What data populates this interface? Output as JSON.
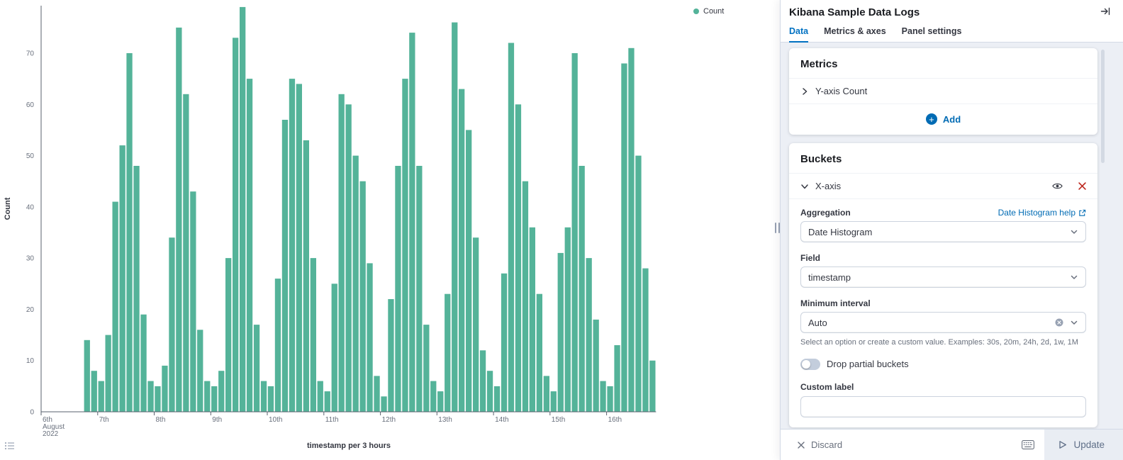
{
  "colors": {
    "bar_green": "#54B399",
    "accent_blue": "#0071c2",
    "link_blue": "#006BB4",
    "danger_red": "#BD271E"
  },
  "chart_data": {
    "type": "bar",
    "title": "",
    "xlabel": "timestamp per 3 hours",
    "ylabel": "Count",
    "ylim": [
      0,
      80
    ],
    "y_ticks": [
      0,
      10,
      20,
      30,
      40,
      50,
      60,
      70
    ],
    "x_tick_labels": [
      "6th August 2022",
      "7th",
      "8th",
      "9th",
      "10th",
      "11th",
      "12th",
      "13th",
      "14th",
      "15th",
      "16th"
    ],
    "bucket_interval": "3h",
    "x_start": "2022-08-06 18:00",
    "buckets_per_day": 8,
    "series_start_offset_buckets": 6,
    "grid": false,
    "legend_position": "top-right",
    "legend": [
      {
        "label": "Count",
        "color": "#54B399"
      }
    ],
    "values": [
      14,
      8,
      6,
      15,
      41,
      52,
      70,
      48,
      19,
      6,
      5,
      9,
      34,
      75,
      62,
      43,
      16,
      6,
      5,
      8,
      30,
      73,
      79,
      65,
      17,
      6,
      5,
      26,
      57,
      65,
      64,
      53,
      30,
      6,
      4,
      25,
      62,
      60,
      50,
      45,
      29,
      7,
      3,
      22,
      48,
      65,
      74,
      48,
      17,
      6,
      4,
      23,
      76,
      63,
      55,
      34,
      12,
      8,
      5,
      27,
      72,
      60,
      45,
      36,
      23,
      7,
      4,
      31,
      36,
      70,
      48,
      30,
      18,
      6,
      5,
      13,
      68,
      71,
      50,
      28,
      10
    ]
  },
  "panel": {
    "title": "Kibana Sample Data Logs",
    "tabs": [
      {
        "label": "Data",
        "active": true
      },
      {
        "label": "Metrics & axes",
        "active": false
      },
      {
        "label": "Panel settings",
        "active": false
      }
    ],
    "metrics": {
      "heading": "Metrics",
      "row_label": "Y-axis Count",
      "add_label": "Add"
    },
    "buckets": {
      "heading": "Buckets",
      "row_label": "X-axis",
      "aggregation_label": "Aggregation",
      "aggregation_help": "Date Histogram help",
      "aggregation_value": "Date Histogram",
      "field_label": "Field",
      "field_value": "timestamp",
      "min_interval_label": "Minimum interval",
      "min_interval_value": "Auto",
      "min_interval_help": "Select an option or create a custom value. Examples: 30s, 20m, 24h, 2d, 1w, 1M",
      "drop_partial_label": "Drop partial buckets",
      "drop_partial_on": false,
      "custom_label_label": "Custom label",
      "custom_label_value": ""
    },
    "footer": {
      "discard_label": "Discard",
      "update_label": "Update"
    }
  }
}
